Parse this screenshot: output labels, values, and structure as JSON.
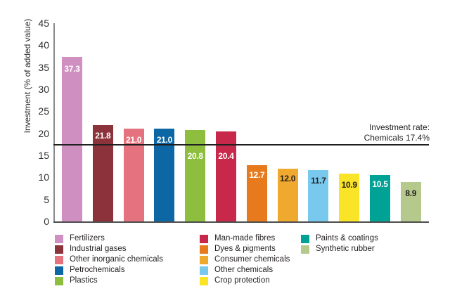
{
  "chart_data": {
    "type": "bar",
    "title": "",
    "xlabel": "",
    "ylabel": "Investment (% of added value)",
    "ylim": [
      0,
      45
    ],
    "yticks": [
      0,
      5,
      10,
      15,
      20,
      25,
      30,
      35,
      40,
      45
    ],
    "grid": false,
    "legend_position": "bottom",
    "bars": [
      {
        "category": "Fertilizers",
        "value": 37.3,
        "label": "37.3",
        "color": "#cf8fc1",
        "label_color": "#ffffff",
        "label_dy": 10
      },
      {
        "category": "Industrial gases",
        "value": 21.8,
        "label": "21.8",
        "color": "#8c323b",
        "label_color": "#ffffff",
        "label_dy": 8
      },
      {
        "category": "Other inorganic chemicals",
        "value": 21.0,
        "label": "21.0",
        "color": "#e5737f",
        "label_color": "#ffffff",
        "label_dy": 9
      },
      {
        "category": "Petrochemicals",
        "value": 21.0,
        "label": "21.0",
        "color": "#0e67a5",
        "label_color": "#ffffff",
        "label_dy": 9
      },
      {
        "category": "Plastics",
        "value": 20.8,
        "label": "20.8",
        "color": "#8dbe3e",
        "label_color": "#ffffff",
        "label_dy": 30
      },
      {
        "category": "Man-made fibres",
        "value": 20.4,
        "label": "20.4",
        "color": "#c8294a",
        "label_color": "#ffffff",
        "label_dy": 28
      },
      {
        "category": "Dyes & pigments",
        "value": 12.7,
        "label": "12.7",
        "color": "#e87a1e",
        "label_color": "#ffffff",
        "label_dy": 7
      },
      {
        "category": "Consumer chemicals",
        "value": 12.0,
        "label": "12.0",
        "color": "#f0a92f",
        "label_color": "#231f20",
        "label_dy": 7
      },
      {
        "category": "Other chemicals",
        "value": 11.7,
        "label": "11.7",
        "color": "#79c9ef",
        "label_color": "#231f20",
        "label_dy": 8
      },
      {
        "category": "Crop protection",
        "value": 10.9,
        "label": "10.9",
        "color": "#f9e428",
        "label_color": "#231f20",
        "label_dy": 9
      },
      {
        "category": "Paints & coatings",
        "value": 10.5,
        "label": "10.5",
        "color": "#00a295",
        "label_color": "#ffffff",
        "label_dy": 6
      },
      {
        "category": "Synthetic rubber",
        "value": 8.9,
        "label": "8.9",
        "color": "#b5c98c",
        "label_color": "#231f20",
        "label_dy": 9
      }
    ],
    "reference_line": {
      "value": 17.4,
      "color": "#1f1f1f",
      "annotation_line1": "Investment rate:",
      "annotation_line2": "Chemicals 17.4%"
    },
    "legend_columns": [
      [
        0,
        1,
        2,
        3,
        4
      ],
      [
        5,
        6,
        7,
        8,
        9
      ],
      [
        10,
        11
      ]
    ]
  }
}
